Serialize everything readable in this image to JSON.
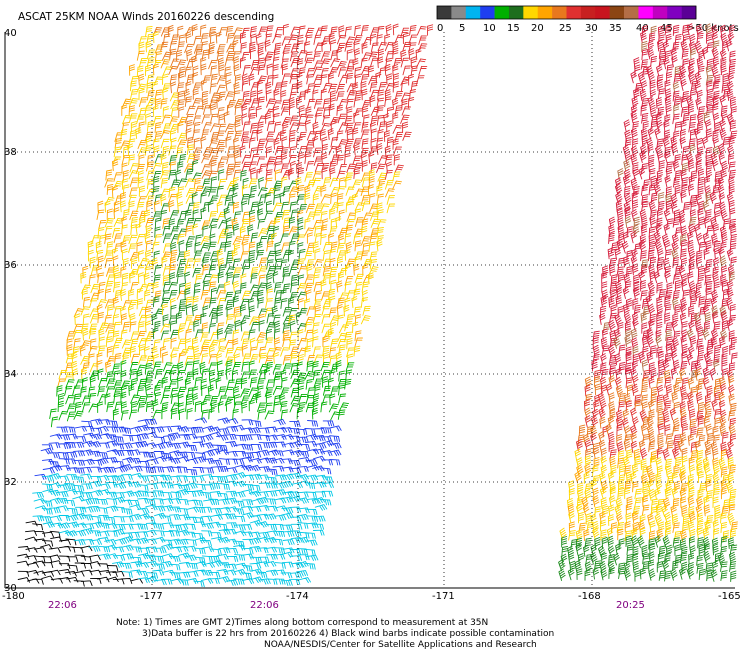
{
  "title": "ASCAT 25KM NOAA Winds 20160226 descending",
  "colorbar": {
    "labels": [
      "0",
      "5",
      "10",
      "15",
      "20",
      "25",
      "30",
      "35",
      "40",
      "45",
      ">50 knots"
    ],
    "colors": [
      "#3a3a3a",
      "#8a8a8a",
      "#00b4f0",
      "#1f3ef0",
      "#00b000",
      "#1e6e1e",
      "#ffd700",
      "#ffa500",
      "#e8781e",
      "#e03030",
      "#c82020",
      "#c8141e",
      "#8b4513",
      "#b46e46",
      "#ff00ff",
      "#c000c0",
      "#8000c0",
      "#5a0096"
    ]
  },
  "lat_labels": [
    "40",
    "38",
    "36",
    "34",
    "32",
    "30"
  ],
  "lon_labels": [
    "-180",
    "-177",
    "-174",
    "-171",
    "-168",
    "-165"
  ],
  "pass_times": [
    "22:06",
    "22:06",
    "20:25"
  ],
  "notes": [
    "Note: 1) Times are GMT 2)Times along bottom correspond to measurement at 35N",
    "3)Data buffer is 22 hrs from 20160226 4) Black wind barbs indicate possible contamination",
    "NOAA/NESDIS/Center for Satellite Applications and Research"
  ]
}
